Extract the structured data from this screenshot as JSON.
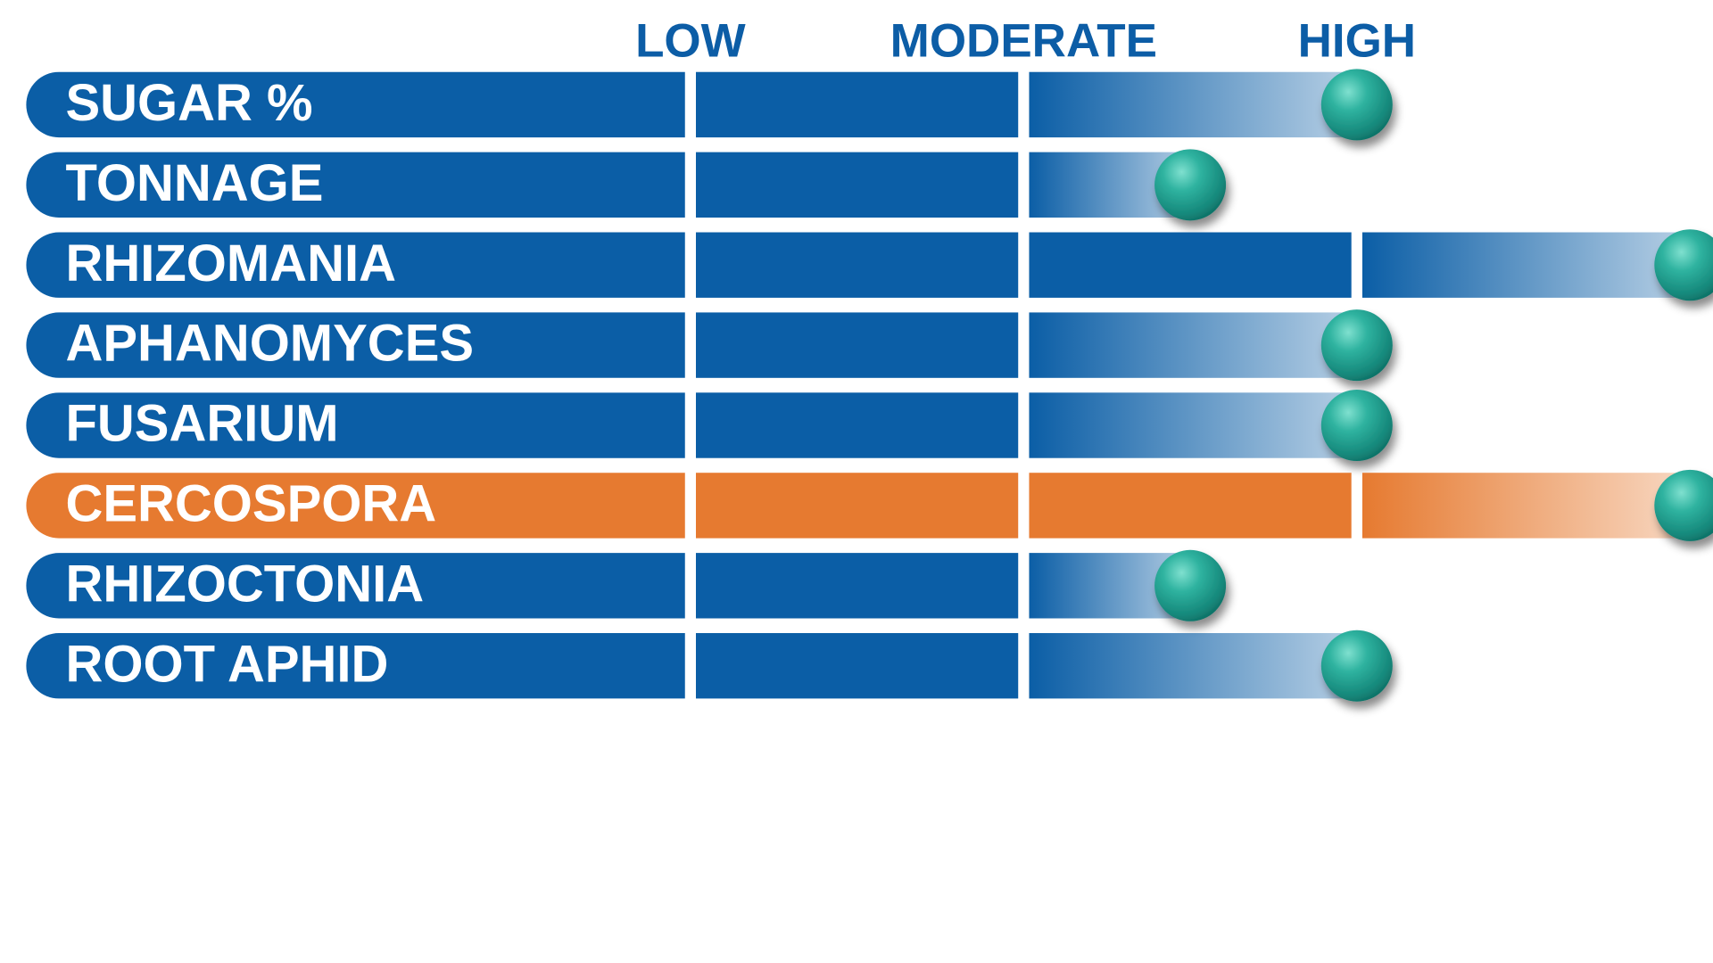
{
  "chart_data": {
    "type": "bar",
    "title": "",
    "xlabel": "",
    "ylabel": "",
    "scale_labels": [
      "LOW",
      "MODERATE",
      "HIGH"
    ],
    "categories": [
      "SUGAR %",
      "TONNAGE",
      "RHIZOMANIA",
      "APHANOMYCES",
      "FUSARIUM",
      "CERCOSPORA",
      "RHIZOCTONIA",
      "ROOT APHID"
    ],
    "values": [
      2.0,
      1.5,
      3.0,
      2.0,
      2.0,
      3.0,
      1.5,
      2.0
    ],
    "xlim": [
      0,
      3
    ],
    "highlight_category": "CERCOSPORA",
    "colors": {
      "bar": "#0b5ea6",
      "highlight": "#e67a30",
      "marker": "#1fa090",
      "scale_text": "#0c5da6"
    }
  }
}
